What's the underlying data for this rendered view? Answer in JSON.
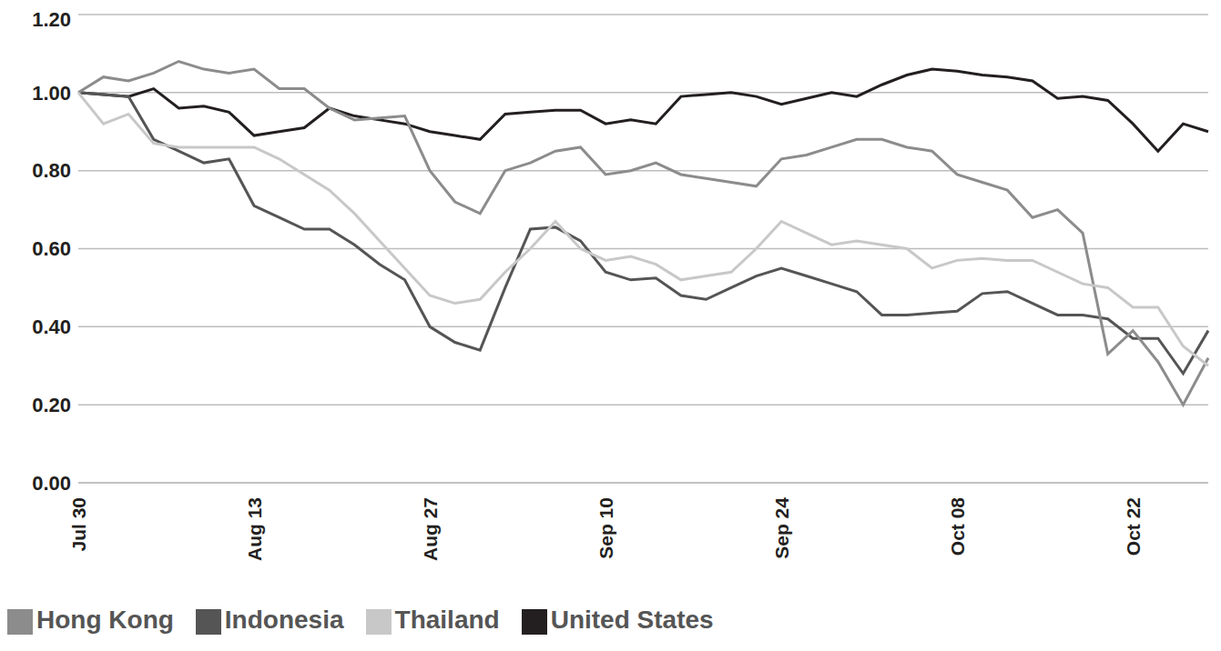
{
  "chart_data": {
    "type": "line",
    "categories": [
      "Jul 30",
      null,
      null,
      null,
      null,
      null,
      null,
      "Aug 13",
      null,
      null,
      null,
      null,
      null,
      null,
      "Aug 27",
      null,
      null,
      null,
      null,
      null,
      null,
      "Sep 10",
      null,
      null,
      null,
      null,
      null,
      null,
      "Sep 24",
      null,
      null,
      null,
      null,
      null,
      null,
      "Oct 08",
      null,
      null,
      null,
      null,
      null,
      null,
      "Oct 22",
      null,
      null,
      null
    ],
    "series": [
      {
        "name": "United States",
        "color": "#231f20",
        "values": [
          1.0,
          0.995,
          0.99,
          1.01,
          0.96,
          0.965,
          0.95,
          0.89,
          0.9,
          0.91,
          0.96,
          0.94,
          0.93,
          0.92,
          0.9,
          0.89,
          0.88,
          0.945,
          0.95,
          0.955,
          0.955,
          0.92,
          0.93,
          0.92,
          0.99,
          0.995,
          1.0,
          0.99,
          0.97,
          0.985,
          1.0,
          0.99,
          1.02,
          1.045,
          1.06,
          1.055,
          1.045,
          1.04,
          1.03,
          0.985,
          0.99,
          0.98,
          0.92,
          0.85,
          0.92,
          0.9
        ]
      },
      {
        "name": "Indonesia",
        "color": "#555555",
        "values": [
          1.0,
          0.995,
          0.99,
          0.88,
          0.85,
          0.82,
          0.83,
          0.71,
          0.68,
          0.65,
          0.65,
          0.61,
          0.56,
          0.52,
          0.4,
          0.36,
          0.34,
          0.5,
          0.65,
          0.655,
          0.62,
          0.54,
          0.52,
          0.525,
          0.48,
          0.47,
          0.5,
          0.53,
          0.55,
          0.53,
          0.51,
          0.49,
          0.43,
          0.43,
          0.435,
          0.44,
          0.485,
          0.49,
          0.46,
          0.43,
          0.43,
          0.42,
          0.37,
          0.37,
          0.28,
          0.39
        ]
      },
      {
        "name": "Hong Kong",
        "color": "#8c8c8c",
        "values": [
          1.0,
          1.04,
          1.03,
          1.05,
          1.08,
          1.06,
          1.05,
          1.06,
          1.01,
          1.01,
          0.96,
          0.93,
          0.935,
          0.94,
          0.8,
          0.72,
          0.69,
          0.8,
          0.82,
          0.85,
          0.86,
          0.79,
          0.8,
          0.82,
          0.79,
          0.78,
          0.77,
          0.76,
          0.83,
          0.84,
          0.86,
          0.88,
          0.88,
          0.86,
          0.85,
          0.79,
          0.77,
          0.75,
          0.68,
          0.7,
          0.64,
          0.33,
          0.39,
          0.31,
          0.2,
          0.32
        ]
      },
      {
        "name": "Thailand",
        "color": "#c8c8c8",
        "values": [
          1.0,
          0.92,
          0.945,
          0.87,
          0.86,
          0.86,
          0.86,
          0.86,
          0.83,
          0.79,
          0.75,
          0.69,
          0.62,
          0.55,
          0.48,
          0.46,
          0.47,
          0.54,
          0.6,
          0.67,
          0.6,
          0.57,
          0.58,
          0.56,
          0.52,
          0.53,
          0.54,
          0.6,
          0.67,
          0.64,
          0.61,
          0.62,
          0.61,
          0.6,
          0.55,
          0.57,
          0.575,
          0.57,
          0.57,
          0.54,
          0.51,
          0.5,
          0.45,
          0.45,
          0.35,
          0.3
        ]
      }
    ],
    "ylim": [
      0,
      1.2
    ],
    "yticks": [
      {
        "value": 0,
        "label": "0.00"
      },
      {
        "value": 0.2,
        "label": "0.20"
      },
      {
        "value": 0.4,
        "label": "0.40"
      },
      {
        "value": 0.6,
        "label": "0.60"
      },
      {
        "value": 0.8,
        "label": "0.80"
      },
      {
        "value": 1,
        "label": "1.00"
      },
      {
        "value": 1.2,
        "label": "1.20"
      }
    ],
    "grid": true,
    "legend": "bottom"
  }
}
